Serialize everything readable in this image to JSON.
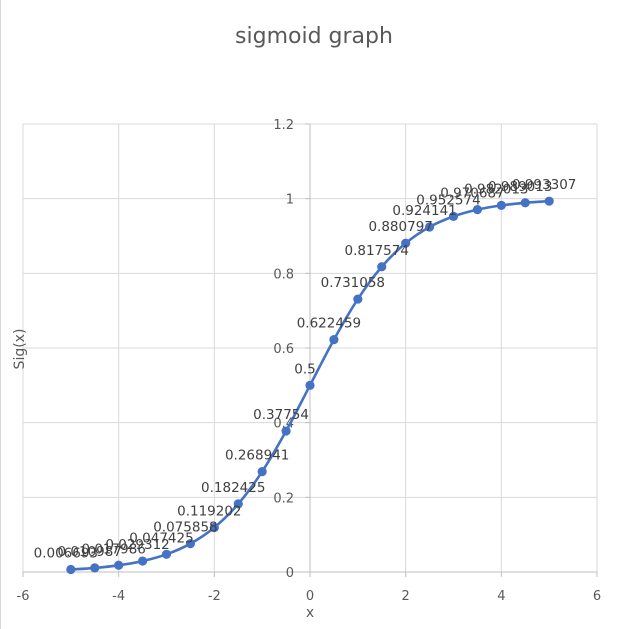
{
  "chart_data": {
    "type": "scatter",
    "title": "sigmoid graph",
    "xlabel": "x",
    "ylabel": "Sig(x)",
    "xlim": [
      -6,
      6
    ],
    "ylim": [
      0,
      1.2
    ],
    "x_ticks": [
      -6,
      -4,
      -2,
      0,
      2,
      4,
      6
    ],
    "y_ticks": [
      0,
      0.2,
      0.4,
      0.6,
      0.8,
      1,
      1.2
    ],
    "x_tick_labels": [
      "-6",
      "-4",
      "-2",
      "0",
      "2",
      "4",
      "6"
    ],
    "y_tick_labels": [
      "0",
      "0.2",
      "0.4",
      "0.6",
      "0.8",
      "1",
      "1.2"
    ],
    "grid": true,
    "legend": "none",
    "series_color": "#4472C4",
    "series": [
      {
        "x": [
          -5,
          -4.5,
          -4,
          -3.5,
          -3,
          -2.5,
          -2,
          -1.5,
          -1,
          -0.5,
          0,
          0.5,
          1,
          1.5,
          2,
          2.5,
          3,
          3.5,
          4,
          4.5,
          5
        ],
        "y": [
          0.006693,
          0.010987,
          0.017986,
          0.029312,
          0.047425,
          0.075858,
          0.119202,
          0.182425,
          0.268941,
          0.37754,
          0.5,
          0.622459,
          0.731058,
          0.817574,
          0.880797,
          0.924141,
          0.952574,
          0.970687,
          0.982013,
          0.989013,
          0.993307
        ],
        "labels": [
          "0.006693",
          "0.010987",
          "0.017986",
          "0.029312",
          "0.047425",
          "0.075858",
          "0.119202",
          "0.182425",
          "0.268941",
          "0.37754",
          "0.5",
          "0.622459",
          "0.731058",
          "0.817574",
          "0.880797",
          "0.924141",
          "0.952574",
          "0.970687",
          "0.982013",
          "0.989013",
          "0.993307"
        ]
      }
    ]
  }
}
